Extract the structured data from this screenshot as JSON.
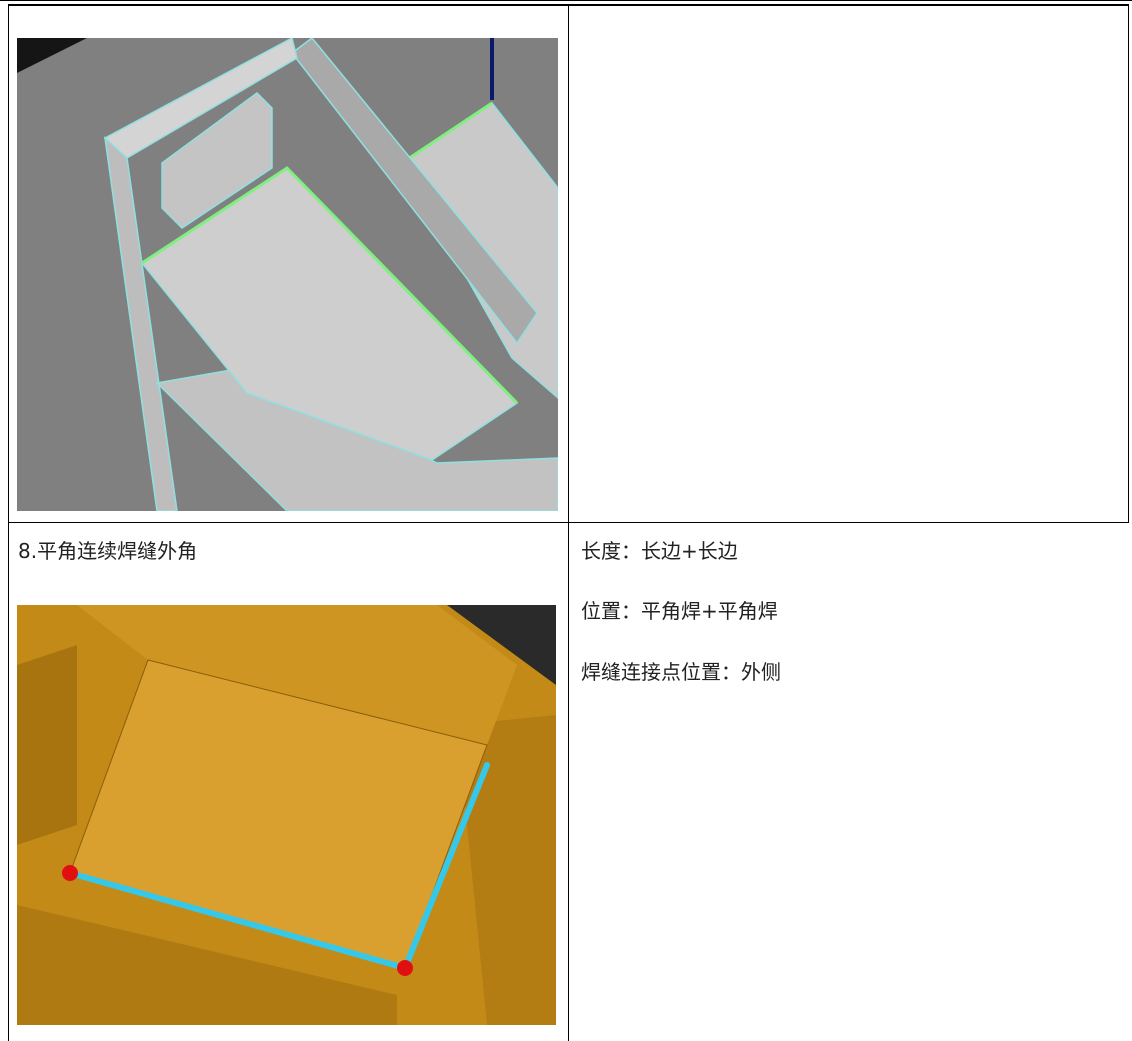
{
  "items": [
    {
      "caption": "8.平角连续焊缝外角",
      "notes": [
        "长度：长边+长边",
        "位置：平角焊+平角焊",
        "焊缝连接点位置：外侧"
      ]
    }
  ]
}
